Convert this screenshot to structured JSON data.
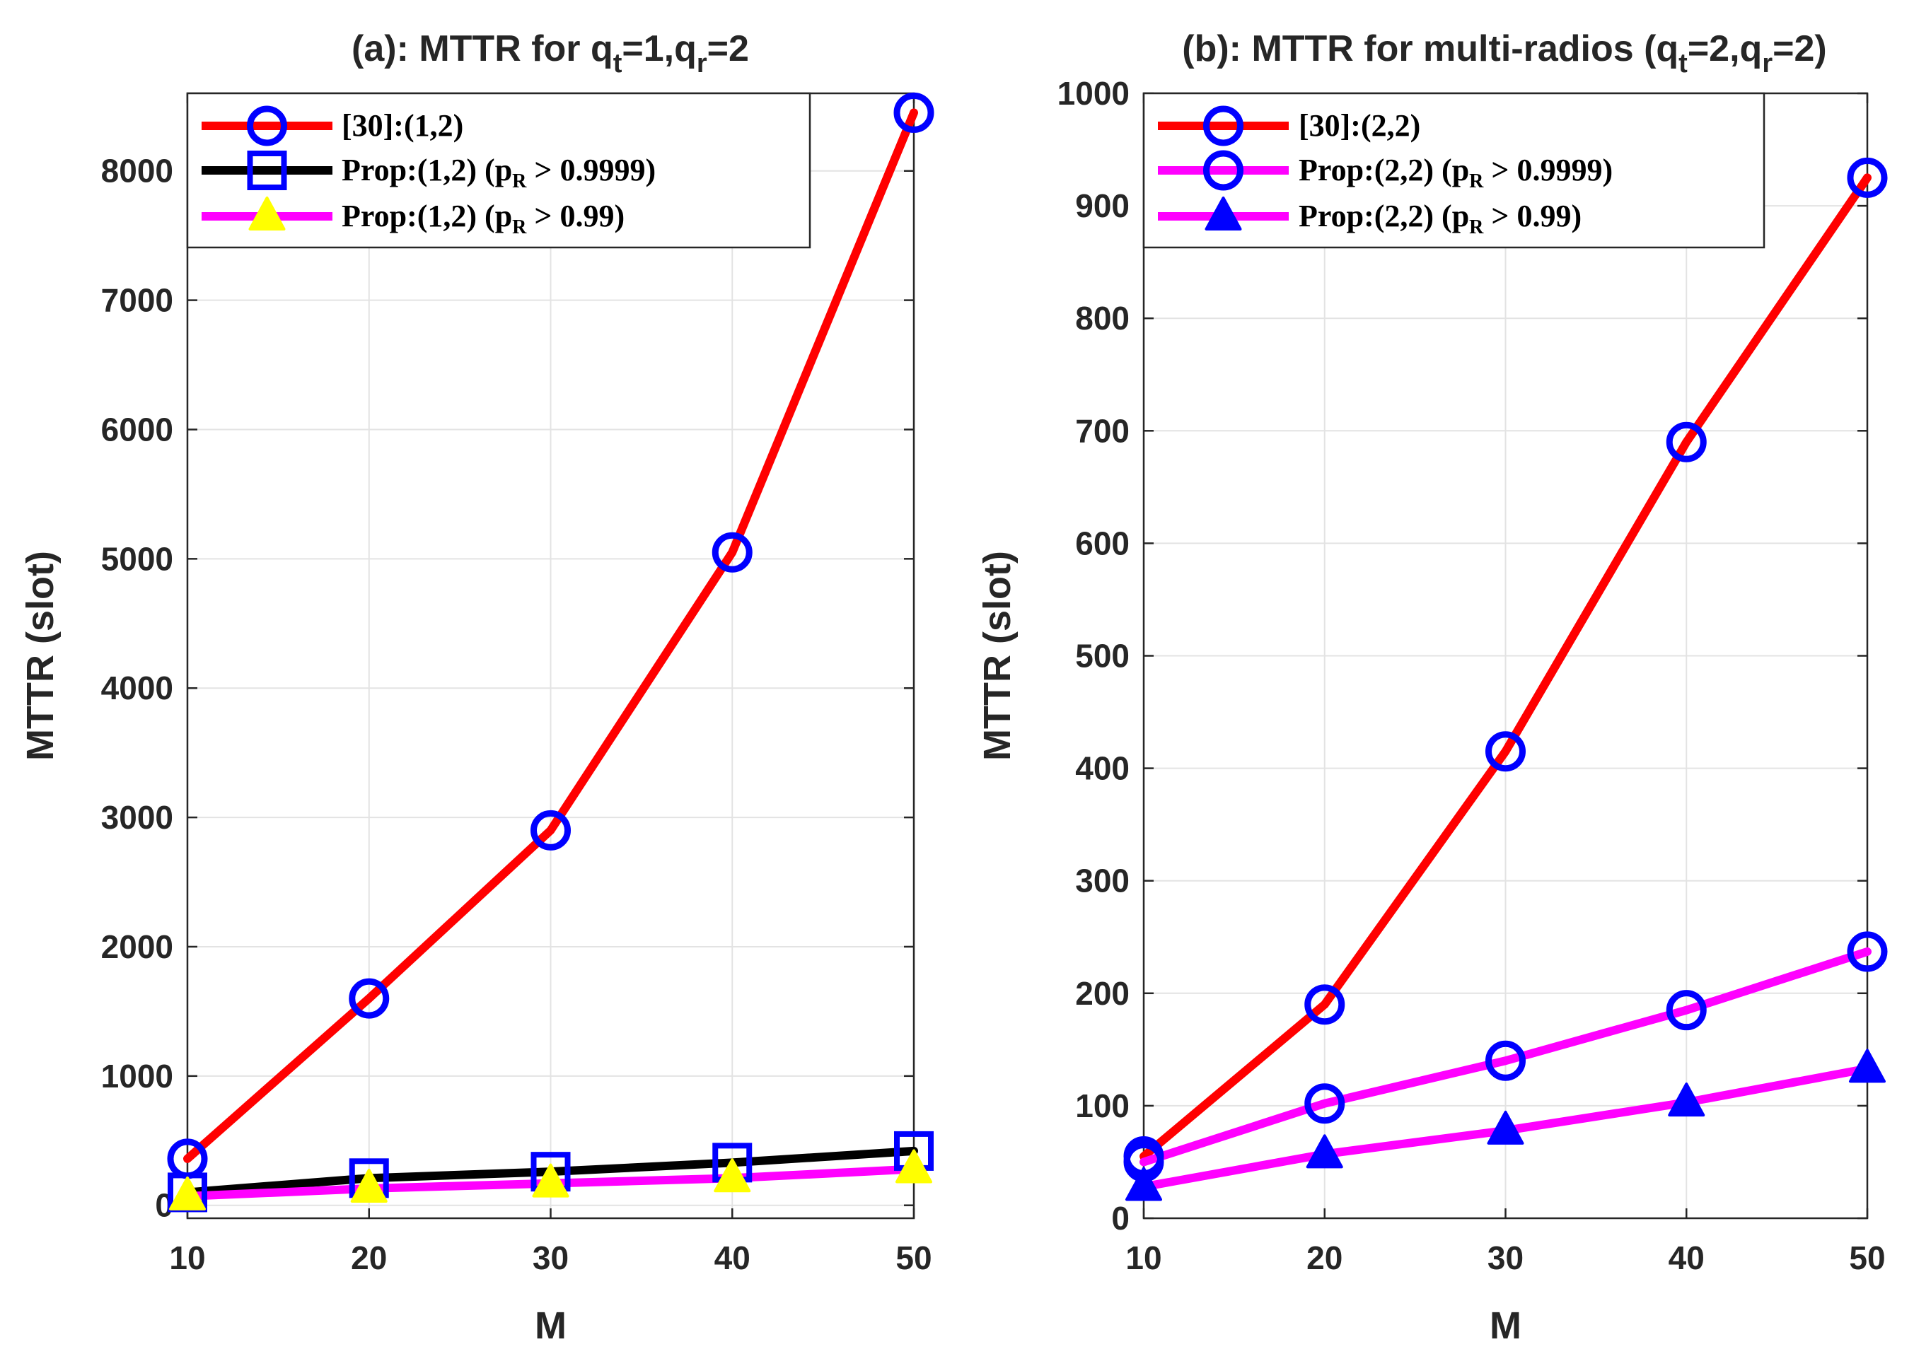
{
  "chart_data": [
    {
      "type": "line",
      "title": "(a): MTTR for q",
      "title_parts": {
        "prefix": "(a): MTTR for q",
        "sub1": "t",
        "mid": "=1,q",
        "sub2": "r",
        "suffix": "=2"
      },
      "xlabel": "M",
      "ylabel": "MTTR (slot)",
      "x": [
        10,
        20,
        30,
        40,
        50
      ],
      "xlim": [
        10,
        50
      ],
      "ylim": [
        -100,
        8600
      ],
      "xticks": [
        "10",
        "20",
        "30",
        "40",
        "50"
      ],
      "yticks": [
        0,
        1000,
        2000,
        3000,
        4000,
        5000,
        6000,
        7000,
        8000
      ],
      "ytick_labels": [
        "0",
        "1000",
        "2000",
        "3000",
        "4000",
        "5000",
        "6000",
        "7000",
        "8000"
      ],
      "grid": true,
      "legend_position": "top-left",
      "series": [
        {
          "name": "[30]:(1,2)",
          "legend_main": "[30]:(1,2)",
          "legend_sub": "",
          "legend_tail": "",
          "values": [
            360,
            1600,
            2900,
            5050,
            8450
          ],
          "line_color": "#ff0000",
          "marker": "circle",
          "marker_edge": "#0000ff",
          "marker_face": "none"
        },
        {
          "name": "Prop:(1,2) (p_R > 0.9999)",
          "legend_main": "Prop:(1,2)  (p",
          "legend_sub": "R",
          "legend_tail": " > 0.9999)",
          "values": [
            100,
            210,
            260,
            330,
            420
          ],
          "line_color": "#000000",
          "marker": "square",
          "marker_edge": "#0000ff",
          "marker_face": "none"
        },
        {
          "name": "Prop:(1,2) (p_R > 0.99)",
          "legend_main": "Prop:(1,2)  (p",
          "legend_sub": "R",
          "legend_tail": " > 0.99)",
          "values": [
            70,
            130,
            170,
            210,
            280
          ],
          "line_color": "#ff00ff",
          "marker": "triangle",
          "marker_edge": "#ffff00",
          "marker_face": "#ffff00"
        }
      ]
    },
    {
      "type": "line",
      "title": "(b): MTTR for multi-radios (q",
      "title_parts": {
        "prefix": "(b): MTTR for multi-radios (q",
        "sub1": "t",
        "mid": "=2,q",
        "sub2": "r",
        "suffix": "=2)"
      },
      "xlabel": "M",
      "ylabel": "MTTR (slot)",
      "x": [
        10,
        20,
        30,
        40,
        50
      ],
      "xlim": [
        10,
        50
      ],
      "ylim": [
        0,
        1000
      ],
      "xticks": [
        "10",
        "20",
        "30",
        "40",
        "50"
      ],
      "yticks": [
        0,
        100,
        200,
        300,
        400,
        500,
        600,
        700,
        800,
        900,
        1000
      ],
      "ytick_labels": [
        "0",
        "100",
        "200",
        "300",
        "400",
        "500",
        "600",
        "700",
        "800",
        "900",
        "1000"
      ],
      "grid": true,
      "legend_position": "top-left",
      "series": [
        {
          "name": "[30]:(2,2)",
          "legend_main": "[30]:(2,2)",
          "legend_sub": "",
          "legend_tail": "",
          "values": [
            55,
            190,
            415,
            690,
            925
          ],
          "line_color": "#ff0000",
          "marker": "circle",
          "marker_edge": "#0000ff",
          "marker_face": "none"
        },
        {
          "name": "Prop:(2,2) (p_R > 0.9999)",
          "legend_main": "Prop:(2,2)  (p",
          "legend_sub": "R",
          "legend_tail": " > 0.9999)",
          "values": [
            50,
            102,
            140,
            185,
            237
          ],
          "line_color": "#ff00ff",
          "marker": "circle",
          "marker_edge": "#0000ff",
          "marker_face": "none"
        },
        {
          "name": "Prop:(2,2) (p_R > 0.99)",
          "legend_main": "Prop:(2,2)  (p",
          "legend_sub": "R",
          "legend_tail": " > 0.99)",
          "values": [
            28,
            57,
            78,
            103,
            133
          ],
          "line_color": "#ff00ff",
          "marker": "triangle",
          "marker_edge": "#0000ff",
          "marker_face": "#0000ff"
        }
      ]
    }
  ]
}
